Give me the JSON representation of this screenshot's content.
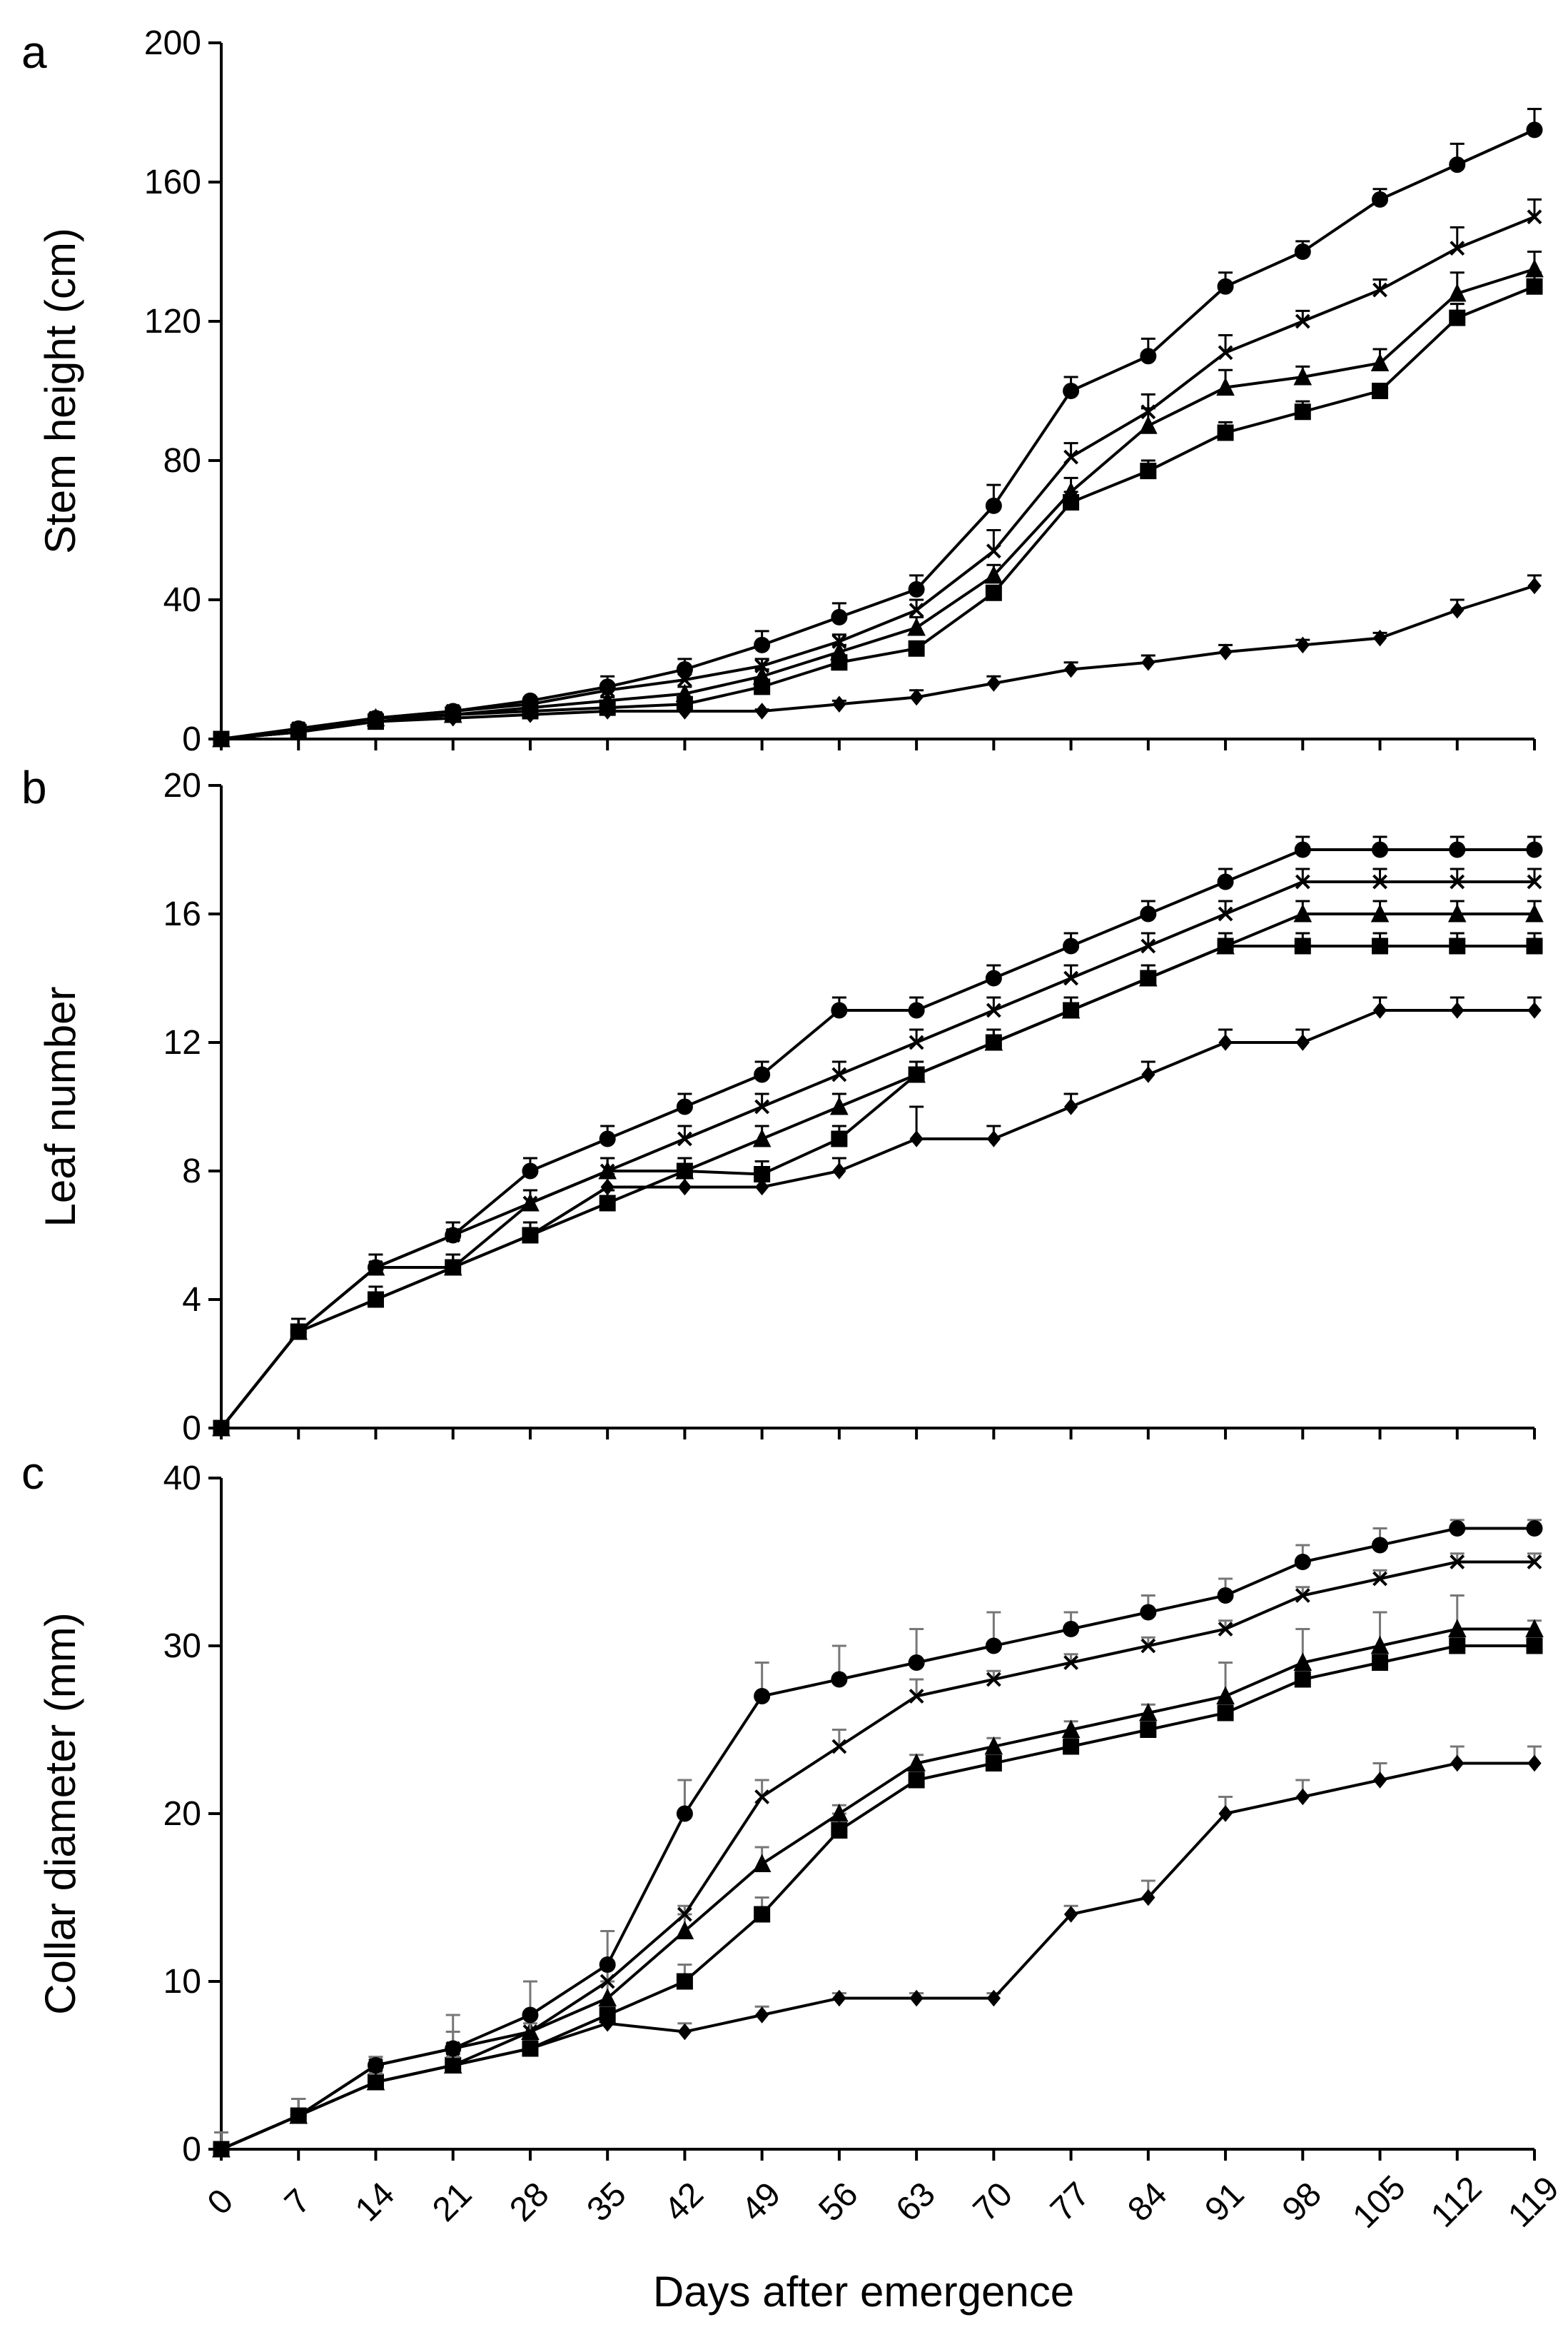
{
  "chart_data": [
    {
      "type": "line",
      "panel_label": "a",
      "title": "",
      "xlabel": "",
      "ylabel": "Stem height (cm)",
      "ylim": [
        0,
        200
      ],
      "yticks": [
        "0",
        "40",
        "80",
        "120",
        "160",
        "200"
      ],
      "x": [
        0,
        7,
        14,
        21,
        28,
        35,
        42,
        49,
        56,
        63,
        70,
        77,
        84,
        91,
        98,
        105,
        112,
        119
      ],
      "series": [
        {
          "name": "diamond",
          "marker": "diamond",
          "values": [
            0,
            2,
            5,
            6,
            7,
            8,
            8,
            8,
            10,
            12,
            16,
            20,
            22,
            25,
            27,
            29,
            37,
            44
          ],
          "errors": [
            0,
            0.5,
            0.5,
            0.5,
            0.5,
            0.5,
            0.5,
            0.5,
            1,
            2,
            2,
            2,
            2,
            2,
            1.5,
            1.5,
            3,
            3
          ]
        },
        {
          "name": "square",
          "marker": "square",
          "values": [
            0,
            2,
            5,
            7,
            8,
            9,
            10,
            15,
            22,
            26,
            42,
            68,
            77,
            88,
            94,
            100,
            121,
            130
          ],
          "errors": [
            0,
            0.5,
            0.5,
            0.5,
            0.5,
            0.5,
            1,
            2,
            2,
            2,
            2,
            3,
            3,
            3,
            3,
            2,
            4,
            4
          ]
        },
        {
          "name": "triangle",
          "marker": "triangle",
          "values": [
            0,
            2,
            6,
            7,
            9,
            11,
            13,
            18,
            25,
            32,
            47,
            71,
            90,
            101,
            104,
            108,
            128,
            135
          ],
          "errors": [
            0,
            0.5,
            0.5,
            0.5,
            0.5,
            1,
            2,
            2,
            2,
            3,
            3,
            4,
            5,
            5,
            3,
            4,
            6,
            5
          ]
        },
        {
          "name": "x",
          "marker": "x",
          "values": [
            0,
            3,
            6,
            8,
            10,
            14,
            17,
            21,
            28,
            37,
            54,
            81,
            94,
            111,
            120,
            129,
            141,
            150
          ],
          "errors": [
            0,
            1,
            1,
            1,
            1,
            2,
            2,
            2,
            2,
            3,
            6,
            4,
            5,
            5,
            3,
            3,
            6,
            5
          ]
        },
        {
          "name": "circle",
          "marker": "circle",
          "values": [
            0,
            3,
            6,
            8,
            11,
            15,
            20,
            27,
            35,
            43,
            67,
            100,
            110,
            130,
            140,
            155,
            165,
            175
          ],
          "errors": [
            0,
            1,
            1,
            1,
            1,
            3,
            3,
            4,
            4,
            4,
            6,
            4,
            5,
            4,
            3,
            3,
            6,
            6
          ]
        }
      ]
    },
    {
      "type": "line",
      "panel_label": "b",
      "title": "",
      "xlabel": "",
      "ylabel": "Leaf number",
      "ylim": [
        0,
        20
      ],
      "yticks": [
        "0",
        "4",
        "8",
        "12",
        "16",
        "20"
      ],
      "x": [
        0,
        7,
        14,
        21,
        28,
        35,
        42,
        49,
        56,
        63,
        70,
        77,
        84,
        91,
        98,
        105,
        112,
        119
      ],
      "series": [
        {
          "name": "diamond",
          "marker": "diamond",
          "values": [
            0,
            3,
            4,
            5,
            6,
            7.5,
            7.5,
            7.5,
            8,
            9,
            9,
            10,
            11,
            12,
            12,
            13,
            13,
            13
          ],
          "errors": [
            0,
            0.4,
            0.4,
            0.4,
            0.4,
            0.4,
            0.4,
            0.4,
            0.4,
            1,
            0.4,
            0.4,
            0.4,
            0.4,
            0.4,
            0.4,
            0.4,
            0.4
          ]
        },
        {
          "name": "square",
          "marker": "square",
          "values": [
            0,
            3,
            4,
            5,
            6,
            7,
            8,
            7.9,
            9,
            11,
            12,
            13,
            14,
            15,
            15,
            15,
            15,
            15
          ],
          "errors": [
            0,
            0.4,
            0.4,
            0.4,
            0.4,
            0.4,
            0.4,
            0.4,
            0.4,
            0.4,
            0.4,
            0.4,
            0.4,
            0.4,
            0.4,
            0.4,
            0.4,
            0.4
          ]
        },
        {
          "name": "triangle",
          "marker": "triangle",
          "values": [
            0,
            3,
            5,
            5,
            7,
            8,
            8,
            9,
            10,
            11,
            12,
            13,
            14,
            15,
            16,
            16,
            16,
            16
          ],
          "errors": [
            0,
            0.4,
            0.4,
            0.4,
            0.4,
            0.4,
            0.4,
            0.4,
            0.4,
            0.4,
            0.4,
            0.4,
            0.4,
            0.4,
            0.4,
            0.4,
            0.4,
            0.4
          ]
        },
        {
          "name": "x",
          "marker": "x",
          "values": [
            0,
            3,
            5,
            6,
            7,
            8,
            9,
            10,
            11,
            12,
            13,
            14,
            15,
            16,
            17,
            17,
            17,
            17
          ],
          "errors": [
            0,
            0.4,
            0.4,
            0.4,
            0.4,
            0.4,
            0.4,
            0.4,
            0.4,
            0.4,
            0.4,
            0.4,
            0.4,
            0.4,
            0.4,
            0.4,
            0.4,
            0.4
          ]
        },
        {
          "name": "circle",
          "marker": "circle",
          "values": [
            0,
            3,
            5,
            6,
            8,
            9,
            10,
            11,
            13,
            13,
            14,
            15,
            16,
            17,
            18,
            18,
            18,
            18
          ],
          "errors": [
            0,
            0.4,
            0.4,
            0.4,
            0.4,
            0.4,
            0.4,
            0.4,
            0.4,
            0.4,
            0.4,
            0.4,
            0.4,
            0.4,
            0.4,
            0.4,
            0.4,
            0.4
          ]
        }
      ]
    },
    {
      "type": "line",
      "panel_label": "c",
      "title": "",
      "xlabel": "Days after emergence",
      "ylabel": "Collar diameter (mm)",
      "ylim": [
        0,
        40
      ],
      "yticks": [
        "0",
        "10",
        "20",
        "30",
        "40"
      ],
      "xticks": [
        "0",
        "7",
        "14",
        "21",
        "28",
        "35",
        "42",
        "49",
        "56",
        "63",
        "70",
        "77",
        "84",
        "91",
        "98",
        "105",
        "112",
        "119"
      ],
      "x": [
        0,
        7,
        14,
        21,
        28,
        35,
        42,
        49,
        56,
        63,
        70,
        77,
        84,
        91,
        98,
        105,
        112,
        119
      ],
      "series": [
        {
          "name": "diamond",
          "marker": "diamond",
          "values": [
            0,
            2,
            4,
            5,
            6,
            7.5,
            7,
            8,
            9,
            9,
            9,
            14,
            15,
            20,
            21,
            22,
            23,
            23
          ],
          "errors": [
            1,
            1,
            0.5,
            0.5,
            0.5,
            0.5,
            0.5,
            0.5,
            0.3,
            0.3,
            0.3,
            0.5,
            1,
            1,
            1,
            1,
            1,
            1
          ]
        },
        {
          "name": "square",
          "marker": "square",
          "values": [
            0,
            2,
            4,
            5,
            6,
            8,
            10,
            14,
            19,
            22,
            23,
            24,
            25,
            26,
            28,
            29,
            30,
            30
          ],
          "errors": [
            1,
            1,
            0.5,
            0.5,
            0.5,
            0.5,
            1,
            1,
            1,
            0.5,
            0.5,
            0.5,
            0.5,
            0.5,
            0.5,
            0.5,
            0.5,
            0.5
          ]
        },
        {
          "name": "triangle",
          "marker": "triangle",
          "values": [
            0,
            2,
            4,
            5,
            7,
            9,
            13,
            17,
            20,
            23,
            24,
            25,
            26,
            27,
            29,
            30,
            31,
            31
          ],
          "errors": [
            1,
            1,
            0.5,
            0.5,
            0.5,
            1,
            1,
            1,
            0.5,
            0.5,
            0.5,
            0.5,
            0.5,
            2,
            2,
            2,
            2,
            0.5
          ]
        },
        {
          "name": "x",
          "marker": "x",
          "values": [
            0,
            2,
            5,
            6,
            7,
            10,
            14,
            21,
            24,
            27,
            28,
            29,
            30,
            31,
            33,
            34,
            35,
            35
          ],
          "errors": [
            1,
            1,
            0.5,
            1,
            1,
            1,
            0.5,
            1,
            1,
            1,
            0.5,
            0.5,
            0.5,
            0.5,
            0.5,
            0.5,
            0.5,
            0.5
          ]
        },
        {
          "name": "circle",
          "marker": "circle",
          "values": [
            0,
            2,
            5,
            6,
            8,
            11,
            20,
            27,
            28,
            29,
            30,
            31,
            32,
            33,
            35,
            36,
            37,
            37
          ],
          "errors": [
            1,
            1,
            0.5,
            2,
            2,
            2,
            2,
            2,
            2,
            2,
            2,
            1,
            1,
            1,
            1,
            1,
            0.5,
            0.5
          ]
        }
      ]
    }
  ]
}
